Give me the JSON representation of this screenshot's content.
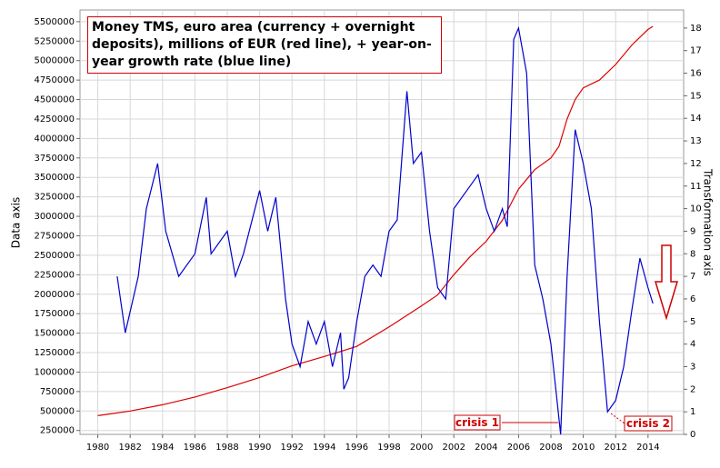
{
  "chart_data": {
    "type": "line",
    "title": "Money TMS, euro area (currency + overnight deposits), millions of EUR (red line), + year-on-year growth rate (blue line)",
    "y_label": "Data axis",
    "y2_label": "Transformation axis",
    "annotations": [
      "crisis 1",
      "crisis 2"
    ],
    "xlim": [
      1978.9,
      2016.2
    ],
    "xticks": [
      1980,
      1982,
      1984,
      1986,
      1988,
      1990,
      1992,
      1994,
      1996,
      1998,
      2000,
      2002,
      2004,
      2006,
      2008,
      2010,
      2012,
      2014
    ],
    "ylim": [
      200000,
      5650000
    ],
    "yticks": [
      250000,
      500000,
      750000,
      1000000,
      1250000,
      1500000,
      1750000,
      2000000,
      2250000,
      2500000,
      2750000,
      3000000,
      3250000,
      3500000,
      3750000,
      4000000,
      4250000,
      4500000,
      4750000,
      5000000,
      5250000,
      5500000
    ],
    "y2lim": [
      0,
      18.8
    ],
    "y2ticks": [
      0,
      1,
      2,
      3,
      4,
      5,
      6,
      7,
      8,
      9,
      10,
      11,
      12,
      13,
      14,
      15,
      16,
      17,
      18
    ],
    "grid": true,
    "series": [
      {
        "color": "#dd0000",
        "x": [
          1980,
          1982,
          1984,
          1986,
          1988,
          1990,
          1992,
          1994,
          1996,
          1998,
          2000,
          2001,
          2002,
          2003,
          2004,
          2005,
          2006,
          2007,
          2008,
          2008.5,
          2009,
          2009.5,
          2010,
          2011,
          2012,
          2013,
          2014,
          2014.3
        ],
        "values": [
          440000,
          500000,
          580000,
          680000,
          800000,
          930000,
          1080000,
          1200000,
          1330000,
          1580000,
          1850000,
          1990000,
          2250000,
          2480000,
          2680000,
          2950000,
          3350000,
          3600000,
          3750000,
          3900000,
          4250000,
          4500000,
          4650000,
          4750000,
          4950000,
          5200000,
          5400000,
          5440000
        ]
      },
      {
        "color": "#0000cc",
        "axis": "y2",
        "x": [
          1981.2,
          1981.7,
          1982.5,
          1983,
          1983.7,
          1984.2,
          1985,
          1986,
          1986.7,
          1987,
          1988,
          1988.5,
          1989,
          1990,
          1990.5,
          1991,
          1991.6,
          1992,
          1992.5,
          1993,
          1993.5,
          1994,
          1994.5,
          1995,
          1995.2,
          1995.5,
          1996,
          1996.5,
          1997,
          1997.5,
          1998,
          1998.5,
          1999.1,
          1999.5,
          2000,
          2000.5,
          2001,
          2001.5,
          2002,
          2002.5,
          2003,
          2003.5,
          2004,
          2004.5,
          2005,
          2005.3,
          2005.7,
          2006,
          2006.5,
          2007,
          2007.5,
          2008,
          2008.3,
          2008.6,
          2009,
          2009.5,
          2010,
          2010.5,
          2011,
          2011.5,
          2012,
          2012.5,
          2013,
          2013.5,
          2014,
          2014.3
        ],
        "values": [
          7,
          4.5,
          7,
          10,
          12,
          9,
          7,
          8,
          10.5,
          8,
          9,
          7,
          8,
          10.8,
          9,
          10.5,
          6,
          4,
          3,
          5,
          4,
          5,
          3,
          4.5,
          2,
          2.5,
          5,
          7,
          7.5,
          7,
          9,
          9.5,
          15.2,
          12,
          12.5,
          9,
          6.5,
          6,
          10,
          10.5,
          11,
          11.5,
          10,
          9,
          10,
          9.2,
          17.5,
          18,
          16,
          7.5,
          6,
          4,
          2,
          0,
          7,
          13.5,
          12,
          10,
          5,
          1,
          1.5,
          3,
          5.5,
          7.8,
          6.5,
          5.8
        ]
      }
    ]
  }
}
